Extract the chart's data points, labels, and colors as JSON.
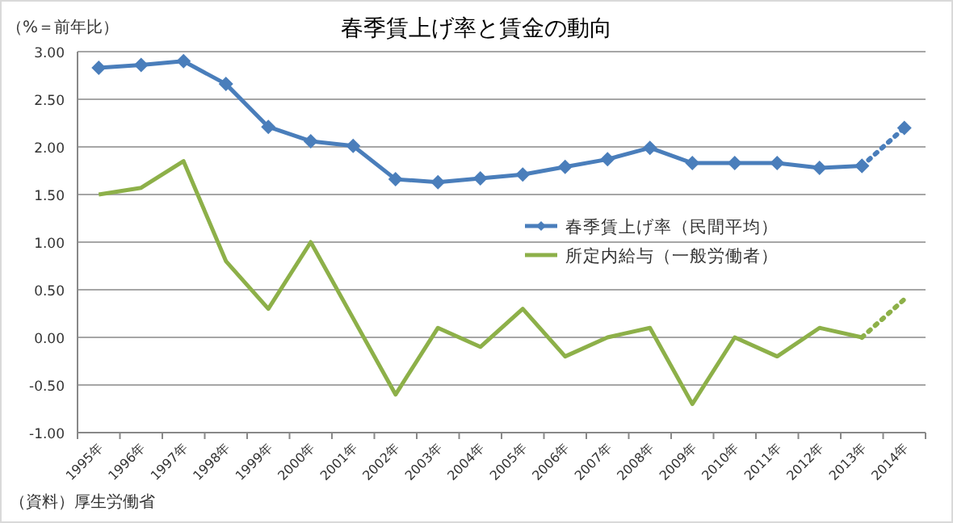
{
  "chart_data": {
    "type": "line",
    "title": "春季賃上げ率と賃金の動向",
    "ylabel": "（%＝前年比）",
    "categories": [
      "1995年",
      "1996年",
      "1997年",
      "1998年",
      "1999年",
      "2000年",
      "2001年",
      "2002年",
      "2003年",
      "2004年",
      "2005年",
      "2006年",
      "2007年",
      "2008年",
      "2009年",
      "2010年",
      "2011年",
      "2012年",
      "2013年",
      "2014年"
    ],
    "series": [
      {
        "name": "春季賃上げ率（民間平均）",
        "color": "#4a7ebb",
        "marker": "diamond",
        "line_style": "solid",
        "values": [
          2.83,
          2.86,
          2.9,
          2.66,
          2.21,
          2.06,
          2.01,
          1.66,
          1.63,
          1.67,
          1.71,
          1.79,
          1.87,
          1.99,
          1.83,
          1.83,
          1.83,
          1.78,
          1.8,
          null
        ]
      },
      {
        "color": "#4a7ebb",
        "marker": "diamond",
        "line_style": "dotted",
        "values": [
          null,
          null,
          null,
          null,
          null,
          null,
          null,
          null,
          null,
          null,
          null,
          null,
          null,
          null,
          null,
          null,
          null,
          null,
          1.8,
          2.2
        ]
      },
      {
        "name": "所定内給与（一般労働者）",
        "color": "#8db049",
        "marker": "none",
        "line_style": "solid",
        "values": [
          1.5,
          1.57,
          1.85,
          0.8,
          0.3,
          1.0,
          0.2,
          -0.6,
          0.1,
          -0.1,
          0.3,
          -0.2,
          0.0,
          0.1,
          -0.7,
          0.0,
          -0.2,
          0.1,
          0.0,
          null
        ]
      },
      {
        "color": "#8db049",
        "marker": "none",
        "line_style": "dotted",
        "values": [
          null,
          null,
          null,
          null,
          null,
          null,
          null,
          null,
          null,
          null,
          null,
          null,
          null,
          null,
          null,
          null,
          null,
          null,
          0.0,
          0.4
        ]
      }
    ],
    "ylim": [
      -1.0,
      3.0
    ],
    "yticks": [
      {
        "value": -1.0,
        "label": "-1.00"
      },
      {
        "value": -0.5,
        "label": "-0.50"
      },
      {
        "value": 0,
        "label": "0.00"
      },
      {
        "value": 0.5,
        "label": "0.50"
      },
      {
        "value": 1.0,
        "label": "1.00"
      },
      {
        "value": 1.5,
        "label": "1.50"
      },
      {
        "value": 2.0,
        "label": "2.00"
      },
      {
        "value": 2.5,
        "label": "2.50"
      },
      {
        "value": 3.0,
        "label": "3.00"
      }
    ],
    "grid": "y",
    "legend": "right",
    "annotations": [
      "（資料）厚生労働省"
    ]
  }
}
